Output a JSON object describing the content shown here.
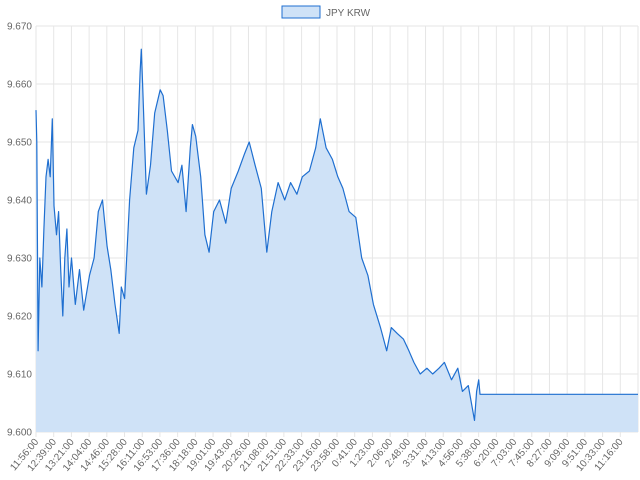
{
  "chart_data": {
    "type": "area",
    "legend": {
      "position": "top-center"
    },
    "series": [
      {
        "name": "JPY KRW",
        "line_color": "#1f6fd0",
        "fill_color": "#cfe2f7",
        "points": [
          [
            "11:56:00",
            9.6555
          ],
          [
            "11:58:00",
            9.65
          ],
          [
            "12:01:00",
            9.614
          ],
          [
            "12:05:00",
            9.63
          ],
          [
            "12:10:00",
            9.625
          ],
          [
            "12:15:00",
            9.635
          ],
          [
            "12:20:00",
            9.644
          ],
          [
            "12:25:00",
            9.647
          ],
          [
            "12:30:00",
            9.644
          ],
          [
            "12:35:00",
            9.654
          ],
          [
            "12:39:00",
            9.639
          ],
          [
            "12:45:00",
            9.634
          ],
          [
            "12:50:00",
            9.638
          ],
          [
            "12:55:00",
            9.628
          ],
          [
            "13:00:00",
            9.62
          ],
          [
            "13:05:00",
            9.63
          ],
          [
            "13:10:00",
            9.635
          ],
          [
            "13:15:00",
            9.625
          ],
          [
            "13:21:00",
            9.63
          ],
          [
            "13:30:00",
            9.622
          ],
          [
            "13:40:00",
            9.628
          ],
          [
            "13:50:00",
            9.621
          ],
          [
            "14:04:00",
            9.627
          ],
          [
            "14:15:00",
            9.63
          ],
          [
            "14:25:00",
            9.638
          ],
          [
            "14:35:00",
            9.64
          ],
          [
            "14:46:00",
            9.632
          ],
          [
            "14:55:00",
            9.628
          ],
          [
            "15:05:00",
            9.622
          ],
          [
            "15:15:00",
            9.617
          ],
          [
            "15:20:00",
            9.625
          ],
          [
            "15:28:00",
            9.623
          ],
          [
            "15:40:00",
            9.64
          ],
          [
            "15:50:00",
            9.649
          ],
          [
            "16:00:00",
            9.652
          ],
          [
            "16:05:00",
            9.662
          ],
          [
            "16:08:00",
            9.666
          ],
          [
            "16:11:00",
            9.66
          ],
          [
            "16:20:00",
            9.641
          ],
          [
            "16:30:00",
            9.646
          ],
          [
            "16:40:00",
            9.655
          ],
          [
            "16:53:00",
            9.659
          ],
          [
            "17:00:00",
            9.658
          ],
          [
            "17:10:00",
            9.652
          ],
          [
            "17:20:00",
            9.645
          ],
          [
            "17:36:00",
            9.643
          ],
          [
            "17:45:00",
            9.646
          ],
          [
            "17:55:00",
            9.638
          ],
          [
            "18:05:00",
            9.649
          ],
          [
            "18:10:00",
            9.653
          ],
          [
            "18:18:00",
            9.651
          ],
          [
            "18:30:00",
            9.644
          ],
          [
            "18:40:00",
            9.634
          ],
          [
            "18:50:00",
            9.631
          ],
          [
            "19:01:00",
            9.638
          ],
          [
            "19:15:00",
            9.64
          ],
          [
            "19:30:00",
            9.636
          ],
          [
            "19:43:00",
            9.642
          ],
          [
            "20:00:00",
            9.645
          ],
          [
            "20:15:00",
            9.648
          ],
          [
            "20:26:00",
            9.65
          ],
          [
            "20:40:00",
            9.646
          ],
          [
            "20:55:00",
            9.642
          ],
          [
            "21:08:00",
            9.631
          ],
          [
            "21:20:00",
            9.638
          ],
          [
            "21:35:00",
            9.643
          ],
          [
            "21:51:00",
            9.64
          ],
          [
            "22:05:00",
            9.643
          ],
          [
            "22:20:00",
            9.641
          ],
          [
            "22:33:00",
            9.644
          ],
          [
            "22:50:00",
            9.645
          ],
          [
            "23:05:00",
            9.649
          ],
          [
            "23:16:00",
            9.654
          ],
          [
            "23:30:00",
            9.649
          ],
          [
            "23:45:00",
            9.647
          ],
          [
            "23:58:00",
            9.644
          ],
          [
            "0:10:00",
            9.642
          ],
          [
            "0:25:00",
            9.638
          ],
          [
            "0:41:00",
            9.637
          ],
          [
            "0:55:00",
            9.63
          ],
          [
            "1:10:00",
            9.627
          ],
          [
            "1:23:00",
            9.622
          ],
          [
            "1:40:00",
            9.618
          ],
          [
            "1:55:00",
            9.614
          ],
          [
            "2:06:00",
            9.618
          ],
          [
            "2:20:00",
            9.617
          ],
          [
            "2:35:00",
            9.616
          ],
          [
            "2:48:00",
            9.614
          ],
          [
            "3:00:00",
            9.612
          ],
          [
            "3:15:00",
            9.61
          ],
          [
            "3:31:00",
            9.611
          ],
          [
            "3:45:00",
            9.61
          ],
          [
            "4:00:00",
            9.611
          ],
          [
            "4:13:00",
            9.612
          ],
          [
            "4:30:00",
            9.609
          ],
          [
            "4:45:00",
            9.611
          ],
          [
            "4:56:00",
            9.607
          ],
          [
            "5:10:00",
            9.608
          ],
          [
            "5:25:00",
            9.602
          ],
          [
            "5:30:00",
            9.607
          ],
          [
            "5:35:00",
            9.609
          ],
          [
            "5:38:00",
            9.6065
          ],
          [
            "11:56:00",
            9.6065
          ]
        ]
      }
    ],
    "x_axis": {
      "tick_labels": [
        "11:56:00",
        "12:39:00",
        "13:21:00",
        "14:04:00",
        "14:46:00",
        "15:28:00",
        "16:11:00",
        "16:53:00",
        "17:36:00",
        "18:18:00",
        "19:01:00",
        "19:43:00",
        "20:26:00",
        "21:08:00",
        "21:51:00",
        "22:33:00",
        "23:16:00",
        "23:58:00",
        "0:41:00",
        "1:23:00",
        "2:06:00",
        "2:48:00",
        "3:31:00",
        "4:13:00",
        "4:56:00",
        "5:38:00",
        "6:20:00",
        "7:03:00",
        "7:45:00",
        "8:27:00",
        "9:09:00",
        "9:51:00",
        "10:33:00",
        "11:16:00"
      ],
      "label": ""
    },
    "y_axis": {
      "min": 9.6,
      "max": 9.67,
      "step": 0.01,
      "tick_labels": [
        "9.600",
        "9.610",
        "9.620",
        "9.630",
        "9.640",
        "9.650",
        "9.660",
        "9.670"
      ],
      "label": ""
    },
    "grid": true
  }
}
